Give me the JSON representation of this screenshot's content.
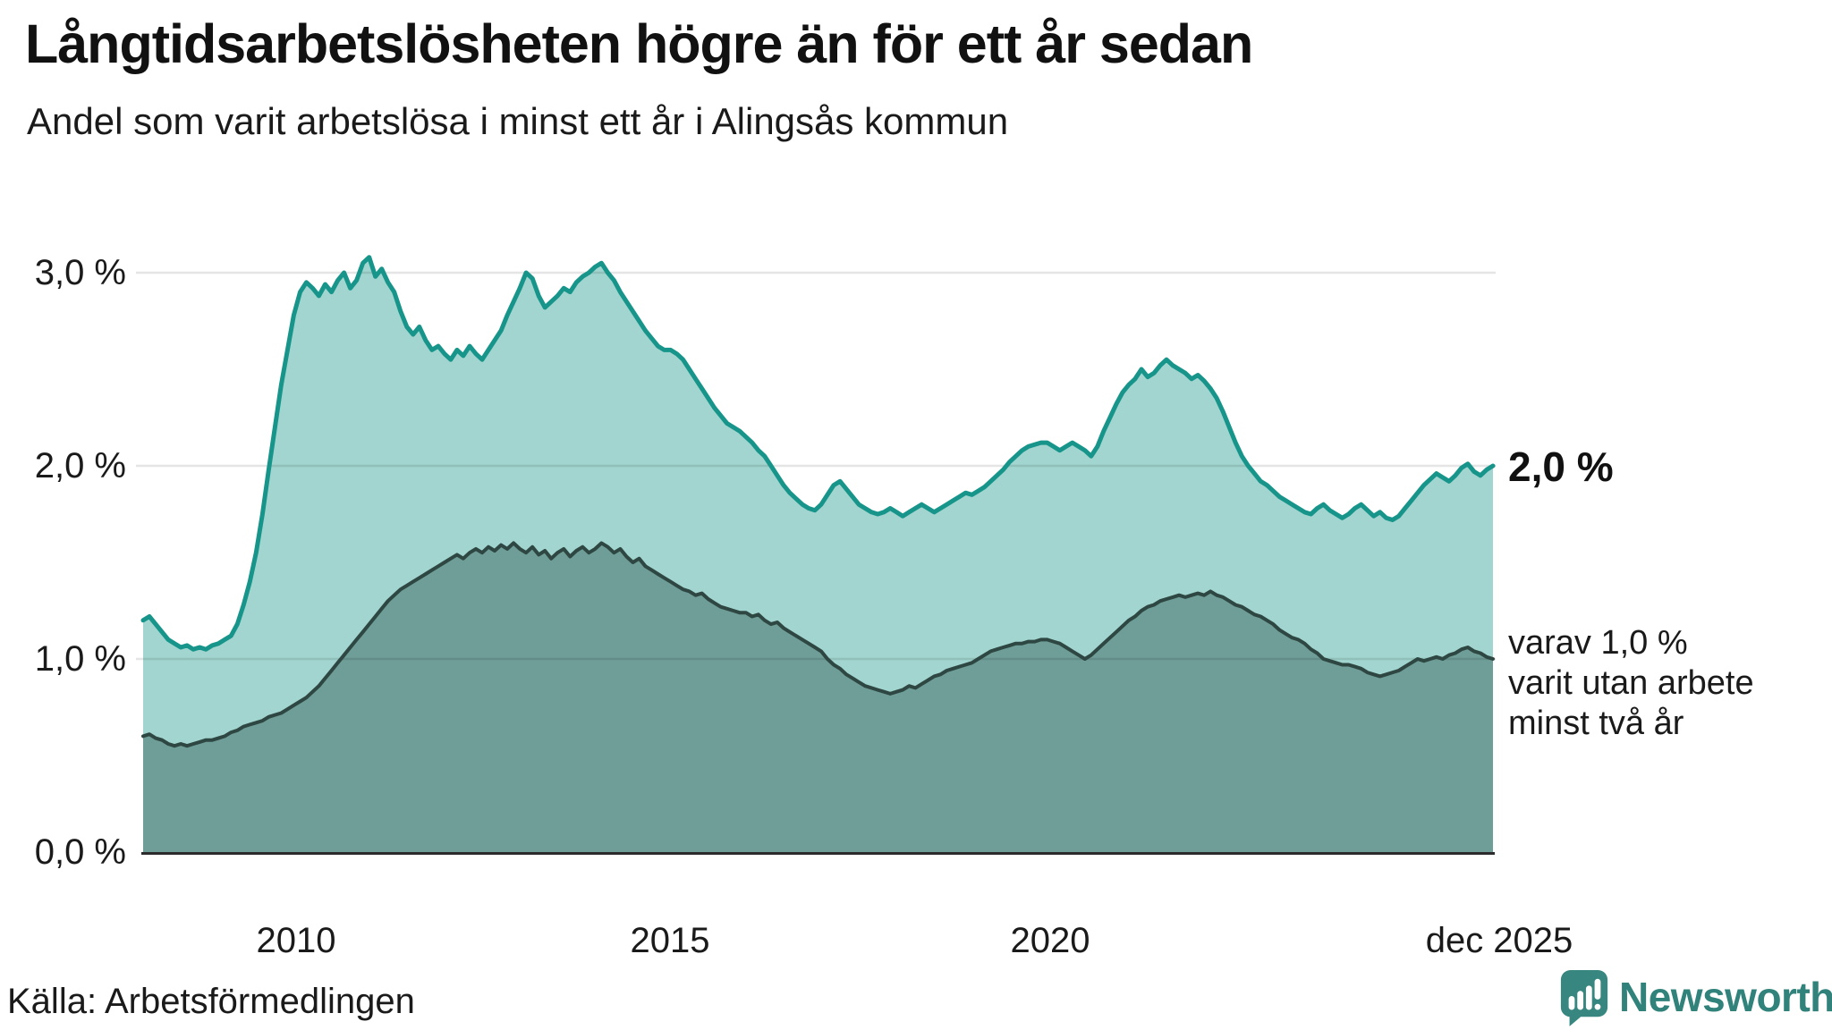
{
  "title": "Långtidsarbetslösheten högre än för ett år sedan",
  "subtitle": "Andel som varit arbetslösa i minst ett år i Alingsås kommun",
  "source": "Källa: Arbetsförmedlingen",
  "branding": {
    "name": "Newsworthy",
    "icon": "bar-chart-speech-bubble-icon",
    "color": "#30827b",
    "icon_color": "#37867f"
  },
  "annotations": {
    "total_end_label": "2,0 %",
    "secondary_lines": [
      "varav 1,0 %",
      "varit utan arbete",
      "minst två år"
    ]
  },
  "axes": {
    "y_tick_labels": [
      "3,0 %",
      "2,0 %",
      "1,0 %",
      "0,0 %"
    ],
    "x_tick_labels": [
      "2010",
      "2015",
      "2020",
      "dec 2025"
    ]
  },
  "colors": {
    "total_line": "#17958a",
    "total_fill": "rgba(23,149,138,0.40)",
    "two_year_line": "#2e4742",
    "two_year_fill": "#6f9d98",
    "gridline": "rgba(0,0,0,0.10)",
    "axis_line": "#2b2b2b"
  },
  "chart_data": {
    "type": "area",
    "title": "Långtidsarbetslösheten högre än för ett år sedan",
    "subtitle": "Andel som varit arbetslösa i minst ett år i Alingsås kommun",
    "unit": "%",
    "x_range_years": [
      2008.0,
      2025.9167
    ],
    "x_step_months": 1,
    "ylim": [
      0,
      3.45
    ],
    "y_tick_values": [
      1,
      2,
      3
    ],
    "x_tick_values": [
      2010,
      2015,
      2020,
      2025.9167
    ],
    "x_tick_labels": [
      "2010",
      "2015",
      "2020",
      "dec 2025"
    ],
    "grid": true,
    "legend_position": "right-annotations",
    "series": [
      {
        "name": "Andel arbetslösa minst ett år",
        "end_value_label": "2,0 %",
        "line_color": "#17958a",
        "fill_color": "rgba(23,149,138,0.40)",
        "values": [
          1.2,
          1.22,
          1.18,
          1.14,
          1.1,
          1.08,
          1.06,
          1.07,
          1.05,
          1.06,
          1.05,
          1.07,
          1.08,
          1.1,
          1.12,
          1.18,
          1.28,
          1.4,
          1.55,
          1.75,
          1.98,
          2.2,
          2.42,
          2.6,
          2.78,
          2.9,
          2.95,
          2.92,
          2.88,
          2.94,
          2.9,
          2.96,
          3.0,
          2.92,
          2.96,
          3.05,
          3.08,
          2.98,
          3.02,
          2.95,
          2.9,
          2.8,
          2.72,
          2.68,
          2.72,
          2.65,
          2.6,
          2.62,
          2.58,
          2.55,
          2.6,
          2.57,
          2.62,
          2.58,
          2.55,
          2.6,
          2.65,
          2.7,
          2.78,
          2.85,
          2.92,
          3.0,
          2.97,
          2.88,
          2.82,
          2.85,
          2.88,
          2.92,
          2.9,
          2.95,
          2.98,
          3.0,
          3.03,
          3.05,
          3.0,
          2.96,
          2.9,
          2.85,
          2.8,
          2.75,
          2.7,
          2.66,
          2.62,
          2.6,
          2.6,
          2.58,
          2.55,
          2.5,
          2.45,
          2.4,
          2.35,
          2.3,
          2.26,
          2.22,
          2.2,
          2.18,
          2.15,
          2.12,
          2.08,
          2.05,
          2.0,
          1.95,
          1.9,
          1.86,
          1.83,
          1.8,
          1.78,
          1.77,
          1.8,
          1.85,
          1.9,
          1.92,
          1.88,
          1.84,
          1.8,
          1.78,
          1.76,
          1.75,
          1.76,
          1.78,
          1.76,
          1.74,
          1.76,
          1.78,
          1.8,
          1.78,
          1.76,
          1.78,
          1.8,
          1.82,
          1.84,
          1.86,
          1.85,
          1.87,
          1.89,
          1.92,
          1.95,
          1.98,
          2.02,
          2.05,
          2.08,
          2.1,
          2.11,
          2.12,
          2.12,
          2.1,
          2.08,
          2.1,
          2.12,
          2.1,
          2.08,
          2.05,
          2.1,
          2.18,
          2.25,
          2.32,
          2.38,
          2.42,
          2.45,
          2.5,
          2.46,
          2.48,
          2.52,
          2.55,
          2.52,
          2.5,
          2.48,
          2.45,
          2.47,
          2.44,
          2.4,
          2.35,
          2.28,
          2.2,
          2.12,
          2.05,
          2.0,
          1.96,
          1.92,
          1.9,
          1.87,
          1.84,
          1.82,
          1.8,
          1.78,
          1.76,
          1.75,
          1.78,
          1.8,
          1.77,
          1.75,
          1.73,
          1.75,
          1.78,
          1.8,
          1.77,
          1.74,
          1.76,
          1.73,
          1.72,
          1.74,
          1.78,
          1.82,
          1.86,
          1.9,
          1.93,
          1.96,
          1.94,
          1.92,
          1.95,
          1.99,
          2.01,
          1.97,
          1.95,
          1.98,
          2.0
        ]
      },
      {
        "name": "varav utan arbete minst två år",
        "end_value_label": "1,0 %",
        "line_color": "#2e4742",
        "fill_color": "#6f9d98",
        "values": [
          0.6,
          0.61,
          0.59,
          0.58,
          0.56,
          0.55,
          0.56,
          0.55,
          0.56,
          0.57,
          0.58,
          0.58,
          0.59,
          0.6,
          0.62,
          0.63,
          0.65,
          0.66,
          0.67,
          0.68,
          0.7,
          0.71,
          0.72,
          0.74,
          0.76,
          0.78,
          0.8,
          0.83,
          0.86,
          0.9,
          0.94,
          0.98,
          1.02,
          1.06,
          1.1,
          1.14,
          1.18,
          1.22,
          1.26,
          1.3,
          1.33,
          1.36,
          1.38,
          1.4,
          1.42,
          1.44,
          1.46,
          1.48,
          1.5,
          1.52,
          1.54,
          1.52,
          1.55,
          1.57,
          1.55,
          1.58,
          1.56,
          1.59,
          1.57,
          1.6,
          1.57,
          1.55,
          1.58,
          1.54,
          1.56,
          1.52,
          1.55,
          1.57,
          1.53,
          1.56,
          1.58,
          1.55,
          1.57,
          1.6,
          1.58,
          1.55,
          1.57,
          1.53,
          1.5,
          1.52,
          1.48,
          1.46,
          1.44,
          1.42,
          1.4,
          1.38,
          1.36,
          1.35,
          1.33,
          1.34,
          1.31,
          1.29,
          1.27,
          1.26,
          1.25,
          1.24,
          1.24,
          1.22,
          1.23,
          1.2,
          1.18,
          1.19,
          1.16,
          1.14,
          1.12,
          1.1,
          1.08,
          1.06,
          1.04,
          1.0,
          0.97,
          0.95,
          0.92,
          0.9,
          0.88,
          0.86,
          0.85,
          0.84,
          0.83,
          0.82,
          0.83,
          0.84,
          0.86,
          0.85,
          0.87,
          0.89,
          0.91,
          0.92,
          0.94,
          0.95,
          0.96,
          0.97,
          0.98,
          1.0,
          1.02,
          1.04,
          1.05,
          1.06,
          1.07,
          1.08,
          1.08,
          1.09,
          1.09,
          1.1,
          1.1,
          1.09,
          1.08,
          1.06,
          1.04,
          1.02,
          1.0,
          1.02,
          1.05,
          1.08,
          1.11,
          1.14,
          1.17,
          1.2,
          1.22,
          1.25,
          1.27,
          1.28,
          1.3,
          1.31,
          1.32,
          1.33,
          1.32,
          1.33,
          1.34,
          1.33,
          1.35,
          1.33,
          1.32,
          1.3,
          1.28,
          1.27,
          1.25,
          1.23,
          1.22,
          1.2,
          1.18,
          1.15,
          1.13,
          1.11,
          1.1,
          1.08,
          1.05,
          1.03,
          1.0,
          0.99,
          0.98,
          0.97,
          0.97,
          0.96,
          0.95,
          0.93,
          0.92,
          0.91,
          0.92,
          0.93,
          0.94,
          0.96,
          0.98,
          1.0,
          0.99,
          1.0,
          1.01,
          1.0,
          1.02,
          1.03,
          1.05,
          1.06,
          1.04,
          1.03,
          1.01,
          1.0
        ]
      }
    ]
  }
}
